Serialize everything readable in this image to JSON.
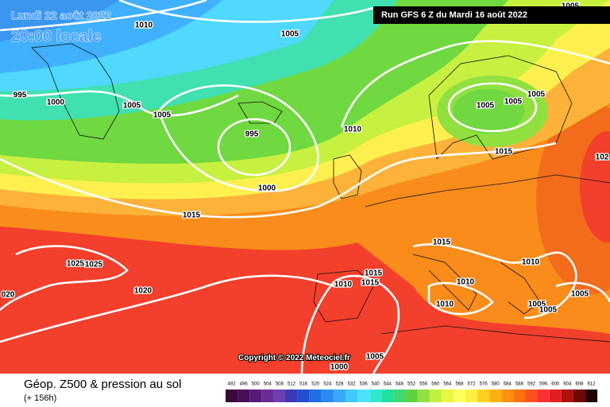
{
  "header": {
    "date": "Lundi 22 août 2022",
    "time": "20:00 locale",
    "run": "Run GFS 6 Z du Mardi 16 août 2022"
  },
  "copyright": "Copyright © 2022 Meteociel.fr",
  "footer": {
    "title": "Géop. Z500 & pression au sol",
    "lead": "(+ 156h)"
  },
  "isobar_labels": [
    "1005",
    "1010",
    "1005",
    "995",
    "1000",
    "1005",
    "1005",
    "995",
    "1000",
    "1010",
    "1005",
    "1005",
    "1005",
    "1015",
    "1015",
    "1015",
    "1025",
    "1025",
    "1020",
    "020",
    "1010",
    "1010",
    "1015",
    "1015",
    "1010",
    "1010",
    "1005",
    "1005",
    "1005",
    "1000",
    "1005",
    "102"
  ],
  "legend": {
    "values": [
      492,
      496,
      500,
      504,
      508,
      512,
      516,
      520,
      524,
      528,
      532,
      536,
      540,
      544,
      548,
      552,
      556,
      560,
      564,
      568,
      572,
      576,
      580,
      584,
      588,
      592,
      596,
      600,
      604,
      608,
      612
    ],
    "colors": [
      "#3a0a3a",
      "#4b0f5a",
      "#5a1a78",
      "#6a2a98",
      "#6e3fb0",
      "#3a3ab8",
      "#2050d0",
      "#1e6ee8",
      "#2a8cf0",
      "#3aa8f8",
      "#40c8ff",
      "#50e0ff",
      "#30e8d0",
      "#20e0a0",
      "#40d870",
      "#60d040",
      "#90e040",
      "#c0f040",
      "#e8f840",
      "#ffff60",
      "#fff040",
      "#ffd020",
      "#ffb010",
      "#ff9010",
      "#ff7010",
      "#ff5020",
      "#ff3030",
      "#e02020",
      "#b01010",
      "#700808",
      "#200000"
    ]
  }
}
